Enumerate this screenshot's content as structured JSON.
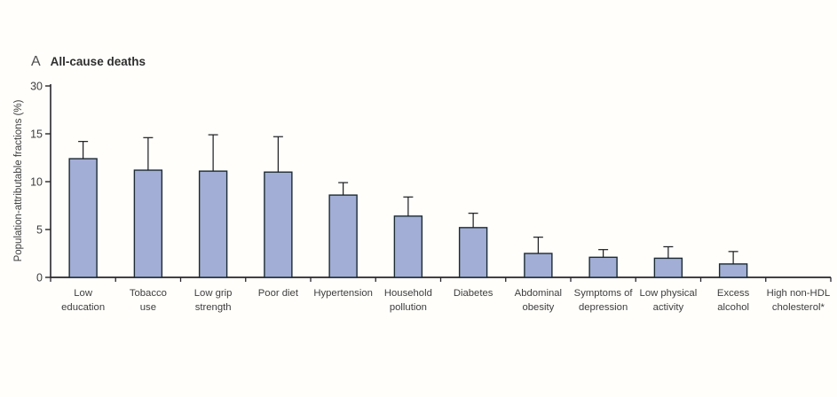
{
  "chart_data": {
    "type": "bar",
    "panel_label": "A",
    "title": "All-cause deaths",
    "ylabel": "Population-attributable fractions (%)",
    "xlabel": "",
    "ylim": [
      0,
      30
    ],
    "yticks": [
      0,
      5,
      10,
      15,
      30
    ],
    "axis_note": "y-axis ticks evenly spaced; segment from 15 to 30 is compressed",
    "grid": false,
    "legend": null,
    "categories": [
      {
        "label": "Low education",
        "lines": [
          "Low",
          "education"
        ]
      },
      {
        "label": "Tobacco use",
        "lines": [
          "Tobacco",
          "use"
        ]
      },
      {
        "label": "Low grip strength",
        "lines": [
          "Low grip",
          "strength"
        ]
      },
      {
        "label": "Poor diet",
        "lines": [
          "Poor diet"
        ]
      },
      {
        "label": "Hypertension",
        "lines": [
          "Hypertension"
        ]
      },
      {
        "label": "Household pollution",
        "lines": [
          "Household",
          "pollution"
        ]
      },
      {
        "label": "Diabetes",
        "lines": [
          "Diabetes"
        ]
      },
      {
        "label": "Abdominal obesity",
        "lines": [
          "Abdominal",
          "obesity"
        ]
      },
      {
        "label": "Symptoms of depression",
        "lines": [
          "Symptoms of",
          "depression"
        ]
      },
      {
        "label": "Low physical activity",
        "lines": [
          "Low physical",
          "activity"
        ]
      },
      {
        "label": "Excess alcohol",
        "lines": [
          "Excess",
          "alcohol"
        ]
      },
      {
        "label": "High non-HDL cholesterol*",
        "lines": [
          "High non-HDL",
          "cholesterol*"
        ]
      }
    ],
    "series": [
      {
        "name": "Population-attributable fraction (%)",
        "values": [
          12.4,
          11.2,
          11.1,
          11.0,
          8.6,
          6.4,
          5.2,
          2.5,
          2.1,
          2.0,
          1.4,
          0
        ],
        "upper_ci": [
          14.2,
          14.6,
          14.9,
          14.7,
          9.9,
          8.4,
          6.7,
          4.2,
          2.9,
          3.2,
          2.7,
          null
        ]
      }
    ],
    "colors": {
      "bar_fill": "#a3aed6",
      "bar_border": "#1c2b33",
      "error_bar": "#1b1b1f",
      "axis": "#29262a",
      "text": "#3d3d3d"
    }
  }
}
